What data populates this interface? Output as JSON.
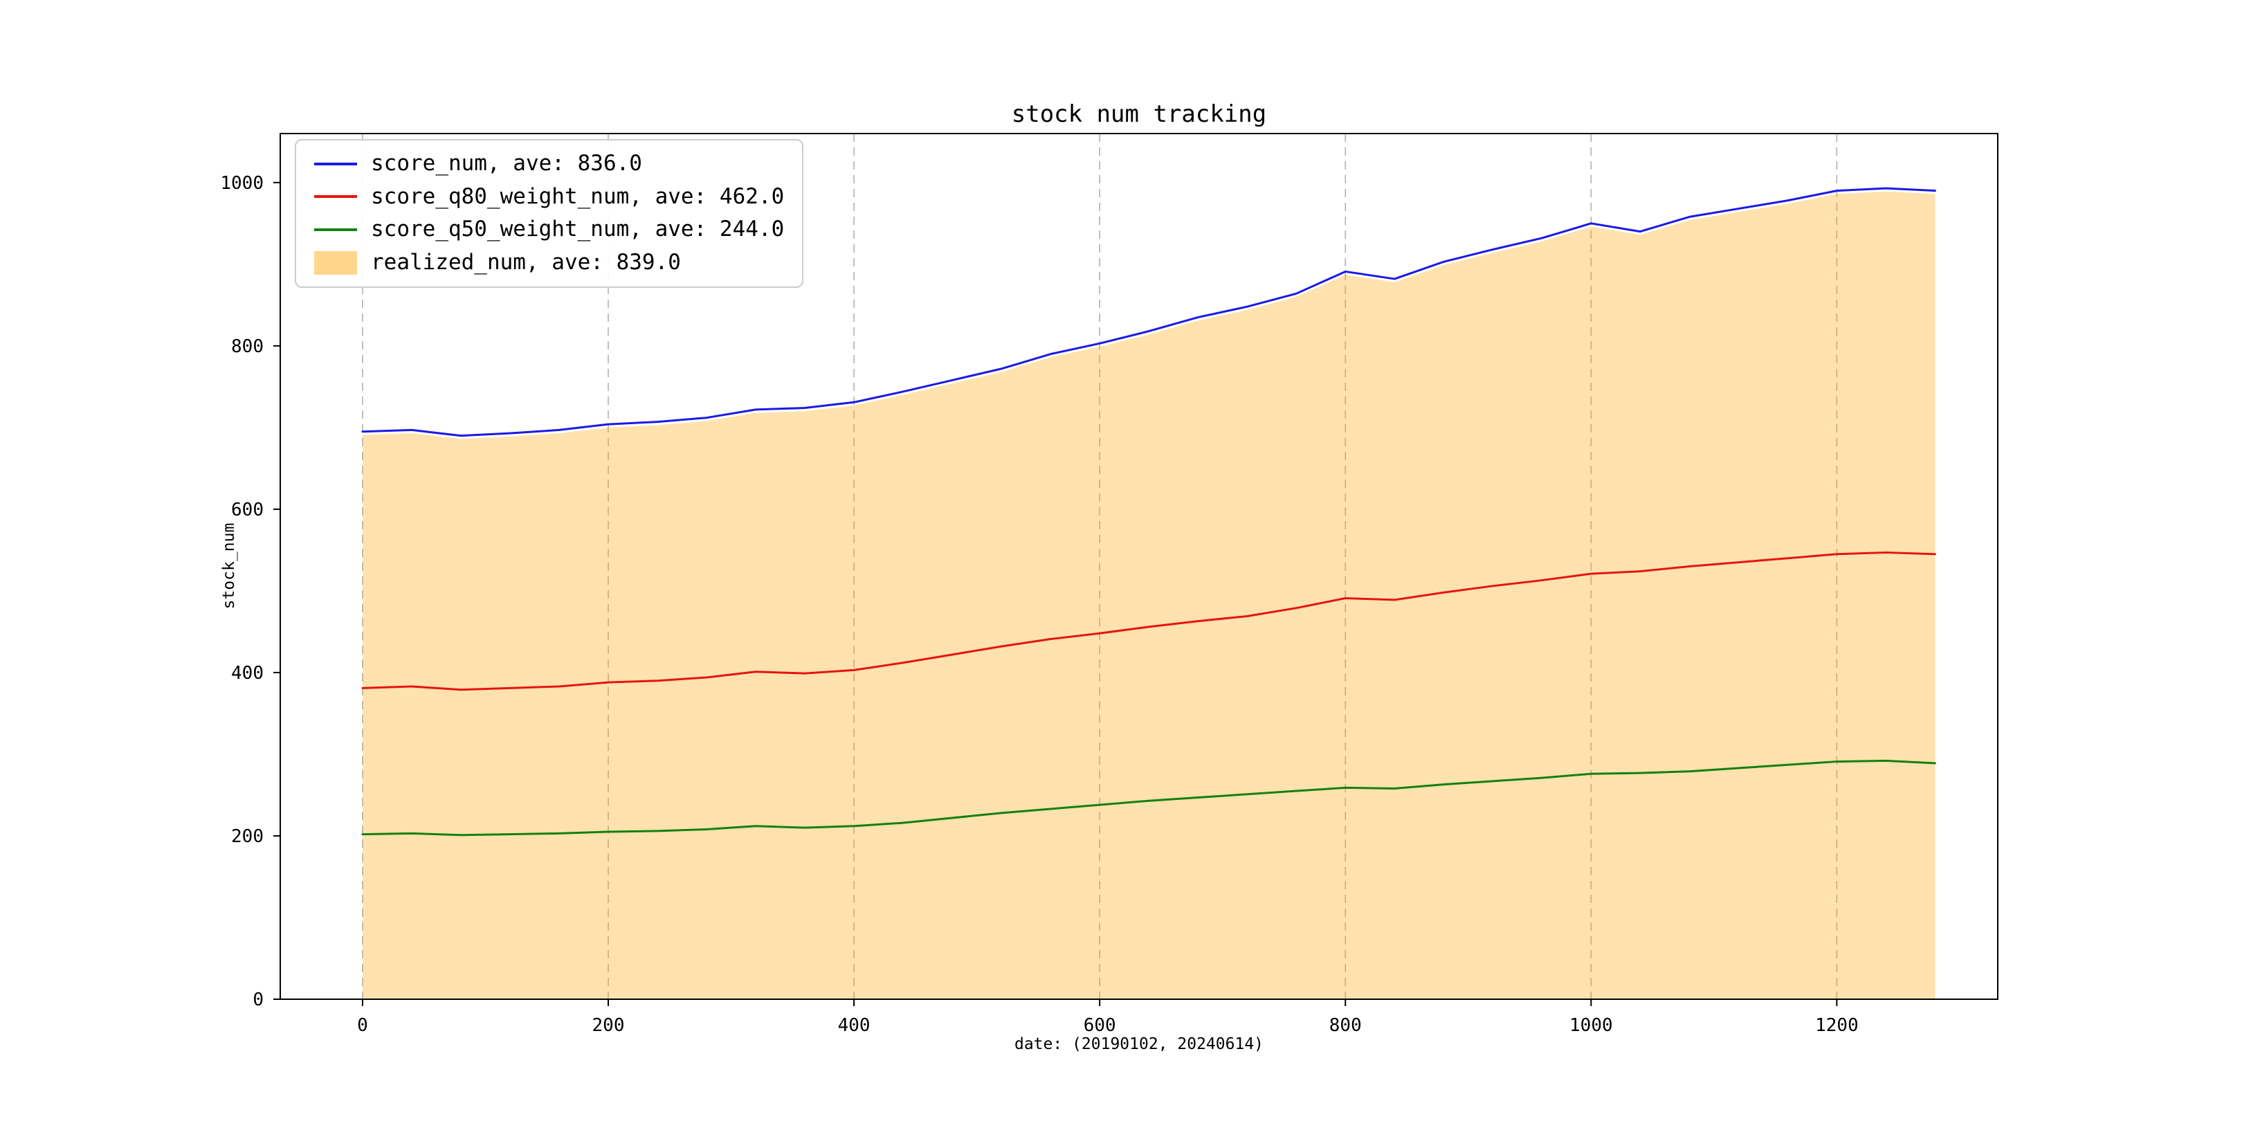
{
  "figure": {
    "background": "#ffffff"
  },
  "chart_data": {
    "type": "line",
    "title": "stock num tracking",
    "xlabel": "date: (20190102, 20240614)",
    "ylabel": "stock_num",
    "xlim": [
      -67,
      1331
    ],
    "ylim": [
      0,
      1060
    ],
    "xticks": [
      0,
      200,
      400,
      600,
      800,
      1000,
      1200
    ],
    "yticks": [
      0,
      200,
      400,
      600,
      800,
      1000
    ],
    "grid": {
      "vertical_dashed": true,
      "horizontal": false,
      "color": "#b0b0b0"
    },
    "legend_position": "upper-left",
    "x": [
      0,
      40,
      80,
      120,
      160,
      200,
      240,
      280,
      320,
      360,
      400,
      440,
      480,
      520,
      560,
      600,
      640,
      680,
      720,
      760,
      800,
      840,
      880,
      920,
      960,
      1000,
      1040,
      1080,
      1120,
      1160,
      1200,
      1240,
      1280
    ],
    "series": [
      {
        "name": "score_num",
        "label": "score_num, ave: 836.0",
        "kind": "line",
        "color": "#1a1ae6",
        "values": [
          695,
          697,
          690,
          693,
          697,
          704,
          707,
          712,
          722,
          724,
          731,
          744,
          758,
          772,
          790,
          803,
          818,
          835,
          848,
          864,
          891,
          882,
          903,
          918,
          932,
          950,
          940,
          958,
          968,
          978,
          990,
          993,
          990
        ]
      },
      {
        "name": "score_q80_weight_num",
        "label": "score_q80_weight_num, ave: 462.0",
        "kind": "line",
        "color": "#e61414",
        "values": [
          381,
          383,
          379,
          381,
          383,
          388,
          390,
          394,
          401,
          399,
          403,
          412,
          422,
          432,
          441,
          448,
          456,
          463,
          469,
          479,
          491,
          489,
          498,
          506,
          513,
          521,
          524,
          530,
          535,
          540,
          545,
          547,
          545
        ]
      },
      {
        "name": "score_q50_weight_num",
        "label": "score_q50_weight_num, ave: 244.0",
        "kind": "line",
        "color": "#128012",
        "values": [
          202,
          203,
          201,
          202,
          203,
          205,
          206,
          208,
          212,
          210,
          212,
          216,
          222,
          228,
          233,
          238,
          243,
          247,
          251,
          255,
          259,
          258,
          263,
          267,
          271,
          276,
          277,
          279,
          283,
          287,
          291,
          292,
          289
        ]
      },
      {
        "name": "realized_num",
        "label": "realized_num, ave: 839.0",
        "kind": "area",
        "color": "#ffa500",
        "opacity": 0.32,
        "swatch_color": "rgba(255,165,0,0.45)",
        "values": [
          691,
          693,
          686,
          689,
          693,
          700,
          703,
          708,
          718,
          720,
          727,
          740,
          754,
          768,
          786,
          799,
          814,
          831,
          844,
          860,
          887,
          878,
          899,
          914,
          928,
          946,
          936,
          954,
          964,
          974,
          986,
          989,
          986
        ]
      }
    ]
  }
}
